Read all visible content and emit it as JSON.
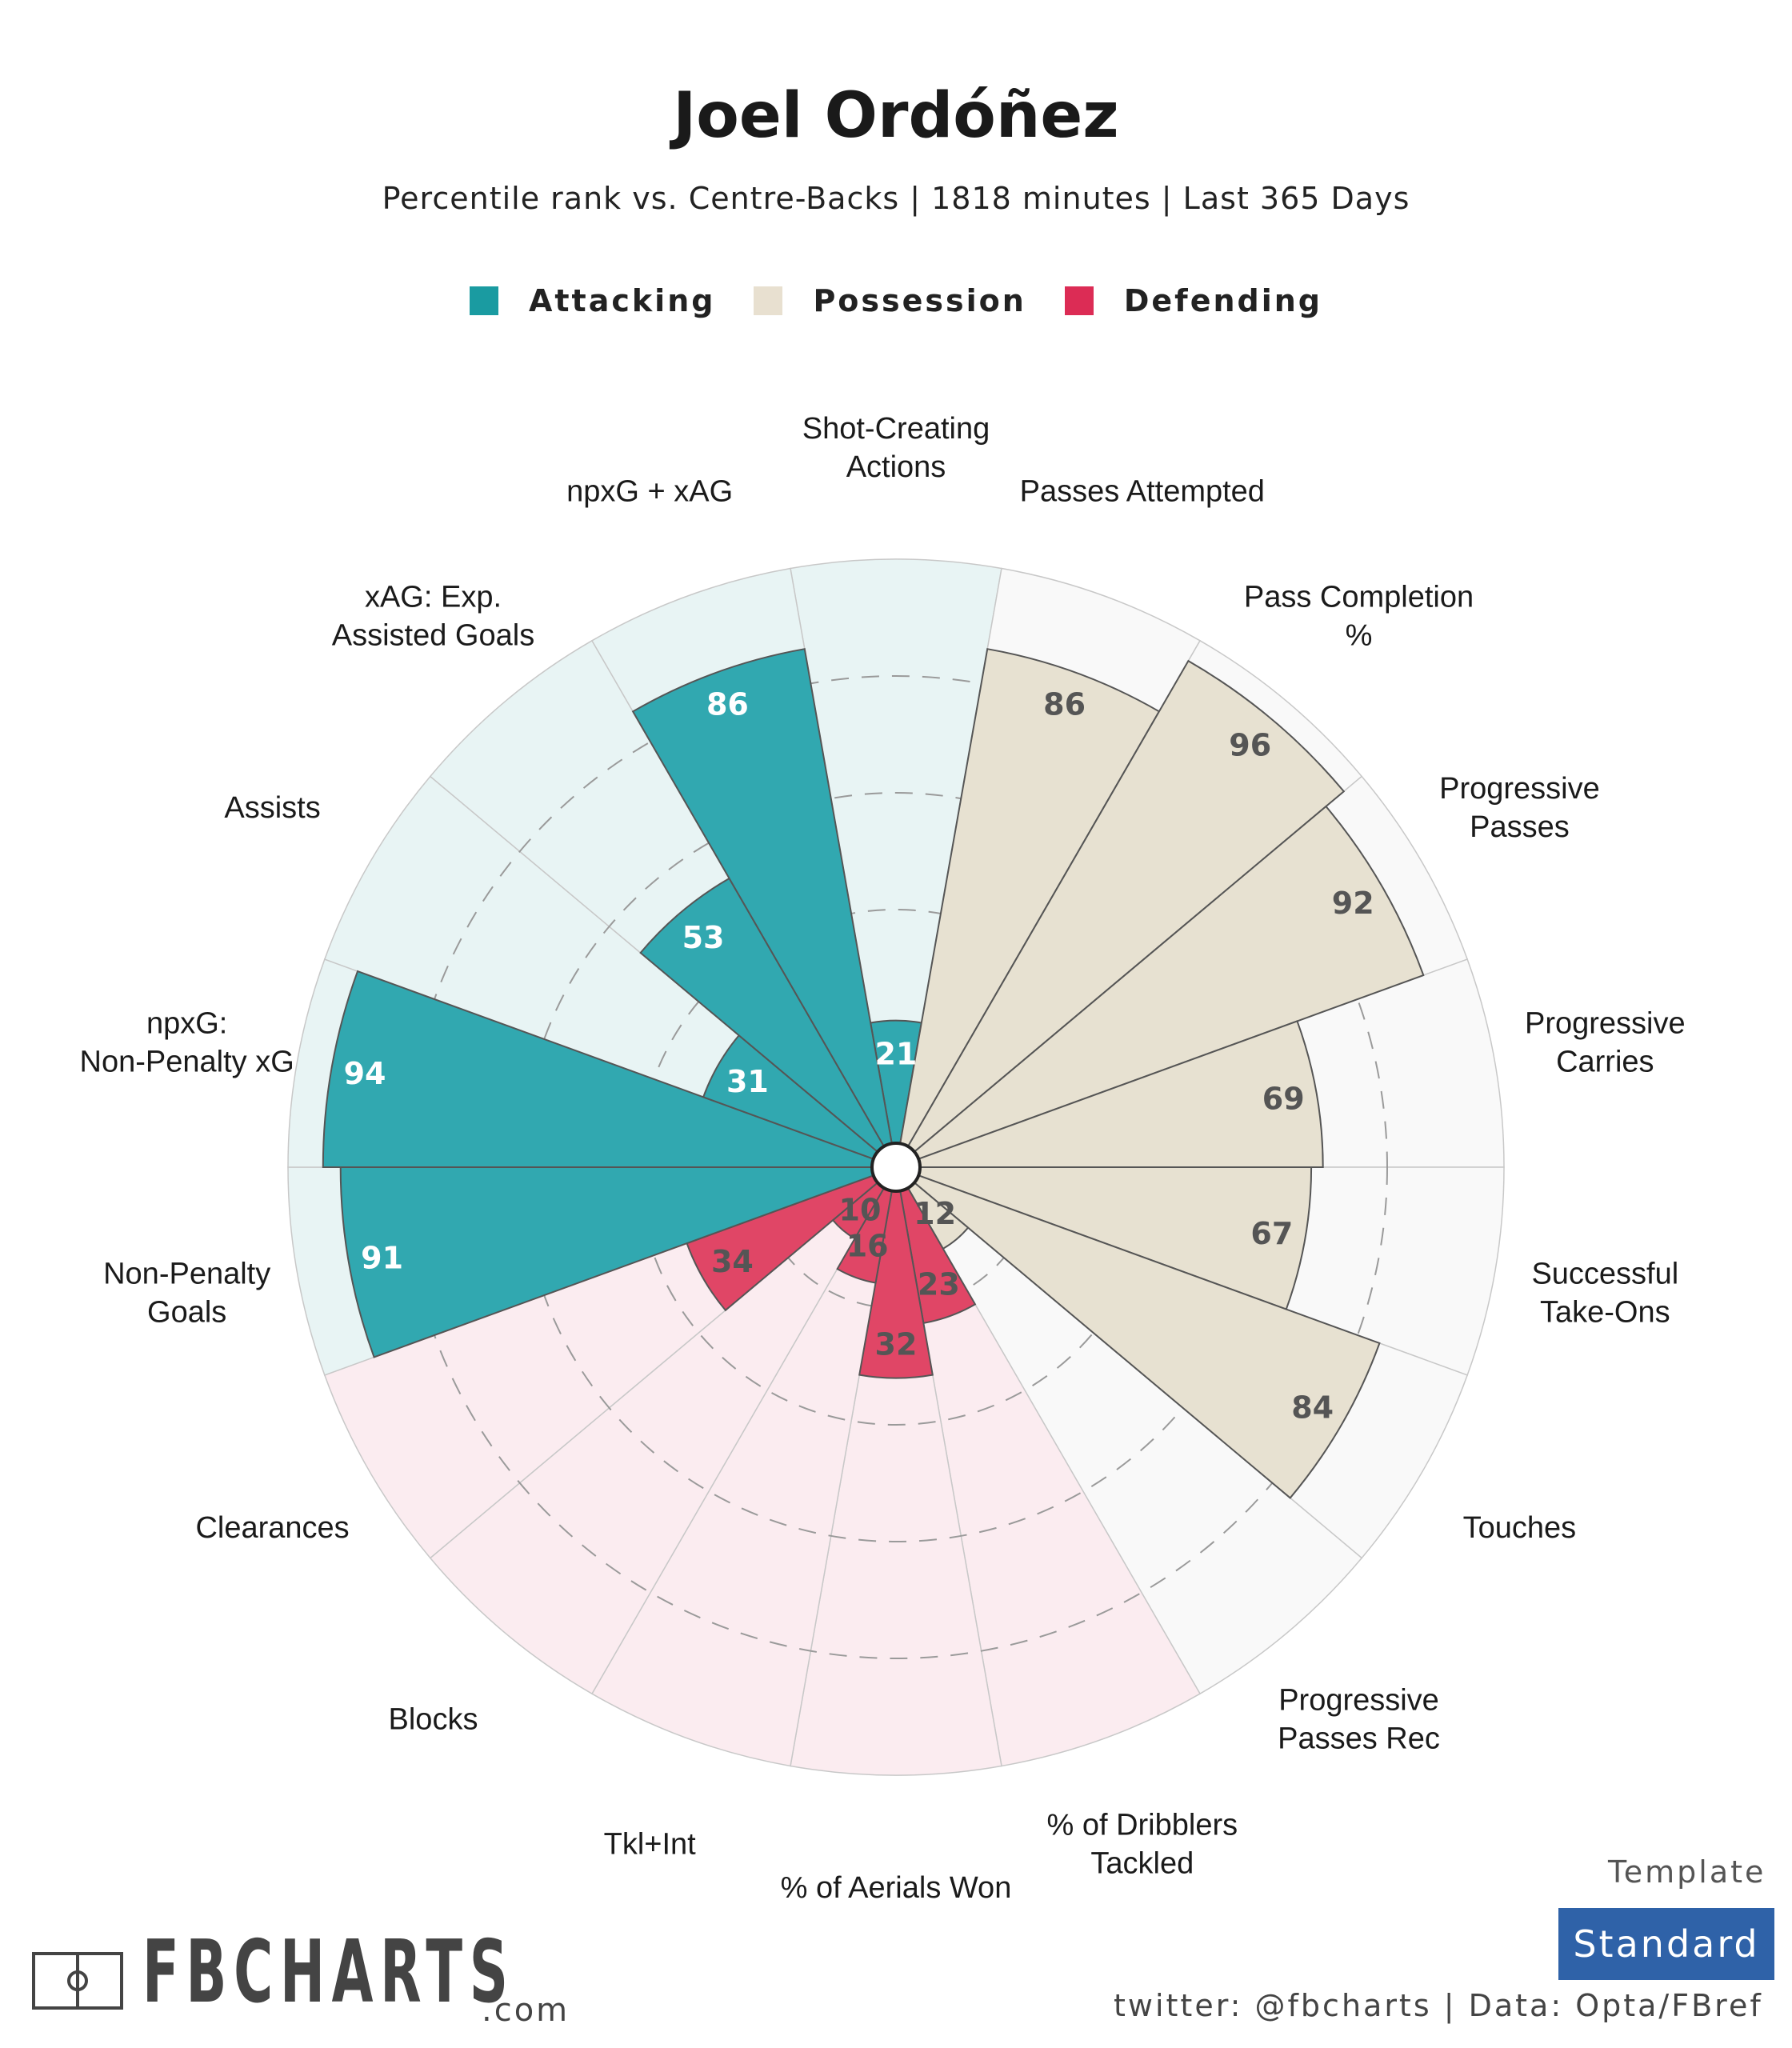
{
  "title": "Joel Ordóñez",
  "subtitle": "Percentile rank vs. Centre-Backs | 1818 minutes | Last 365 Days",
  "legend": [
    {
      "label": "Attacking",
      "color": "#1a9ba1"
    },
    {
      "label": "Possession",
      "color": "#e8e0d0"
    },
    {
      "label": "Defending",
      "color": "#dc2c55"
    }
  ],
  "colors": {
    "attacking": "#31a8b0",
    "attacking_bg": "#e8f4f4",
    "possession": "#e7e1d1",
    "possession_bg": "#f9f9f9",
    "defending": "#e04666",
    "defending_bg": "#fbecf0"
  },
  "chart_data": {
    "type": "radar-bar",
    "scale": [
      0,
      100
    ],
    "grid_rings": [
      20,
      40,
      60,
      80
    ],
    "categories": [
      {
        "label": "Shot-Creating Actions",
        "value": 21,
        "group": "Attacking"
      },
      {
        "label": "Passes Attempted",
        "value": 86,
        "group": "Possession"
      },
      {
        "label": "Pass Completion %",
        "value": 96,
        "group": "Possession"
      },
      {
        "label": "Progressive Passes",
        "value": 92,
        "group": "Possession"
      },
      {
        "label": "Progressive Carries",
        "value": 69,
        "group": "Possession"
      },
      {
        "label": "Successful Take-Ons",
        "value": 67,
        "group": "Possession"
      },
      {
        "label": "Touches",
        "value": 84,
        "group": "Possession"
      },
      {
        "label": "Progressive Passes Rec",
        "value": 12,
        "group": "Possession"
      },
      {
        "label": "% of Dribblers Tackled",
        "value": 23,
        "group": "Defending"
      },
      {
        "label": "% of Aerials Won",
        "value": 32,
        "group": "Defending"
      },
      {
        "label": "Tkl+Int",
        "value": 16,
        "group": "Defending"
      },
      {
        "label": "Blocks",
        "value": 10,
        "group": "Defending"
      },
      {
        "label": "Clearances",
        "value": 34,
        "group": "Defending"
      },
      {
        "label": "Non-Penalty Goals",
        "value": 91,
        "group": "Attacking"
      },
      {
        "label": "npxG: Non-Penalty xG",
        "value": 94,
        "group": "Attacking"
      },
      {
        "label": "Assists",
        "value": 31,
        "group": "Attacking"
      },
      {
        "label": "xAG: Exp. Assisted Goals",
        "value": 53,
        "group": "Attacking"
      },
      {
        "label": "npxG + xAG",
        "value": 86,
        "group": "Attacking"
      }
    ]
  },
  "branding": {
    "logo_text": "FBCHARTS",
    "logo_suffix": ".com",
    "template_label": "Template",
    "template_value": "Standard",
    "footer": "twitter: @fbcharts | Data: Opta/FBref"
  }
}
